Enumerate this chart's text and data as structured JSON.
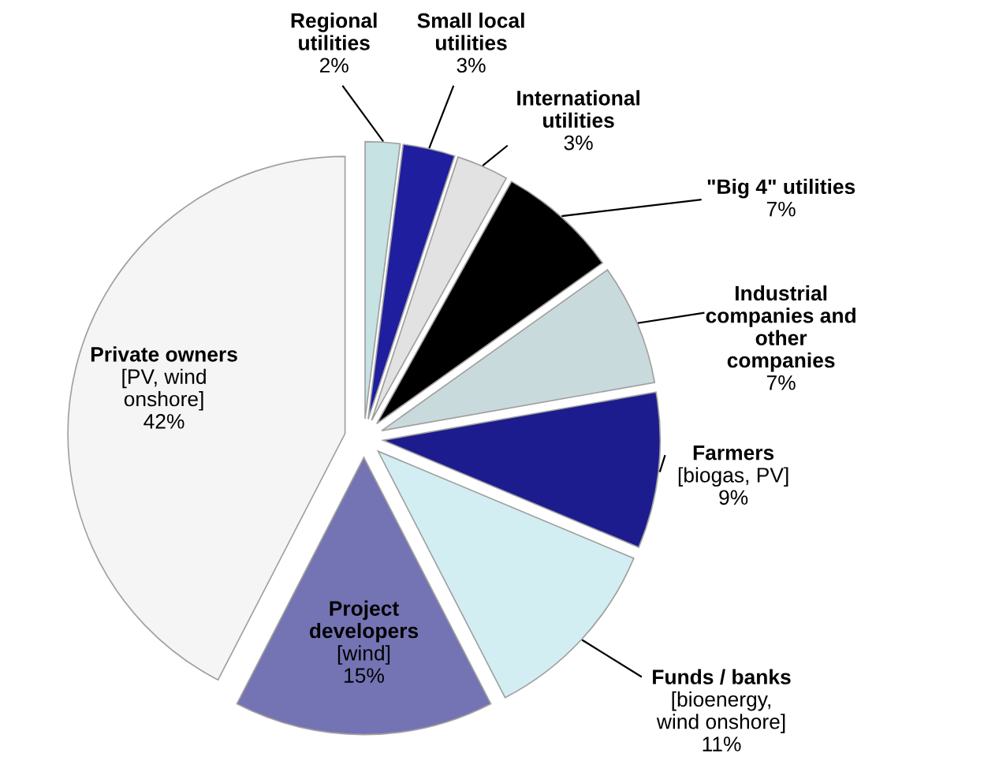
{
  "chart_data": {
    "type": "pie",
    "categories": [
      "Regional\nutilities",
      "Small local\nutilities",
      "International\nutilities",
      "\"Big 4\" utilities",
      "Industrial\ncompanies and\nother\ncompanies",
      "Farmers\n[biogas, PV]",
      "Funds / banks\n[bioenergy,\nwind onshore]",
      "Project\ndevelopers\n[wind]",
      "Private owners\n[PV, wind\nonshore]"
    ],
    "values": [
      2,
      3,
      3,
      7,
      7,
      9,
      11,
      15,
      42
    ],
    "value_labels": [
      "2%",
      "3%",
      "3%",
      "7%",
      "7%",
      "9%",
      "11%",
      "15%",
      "42%"
    ],
    "colors": [
      "#c6e2e2",
      "#1e1e9e",
      "#e2e2e2",
      "#000000",
      "#c9dadd",
      "#1c1c8e",
      "#d2eef2",
      "#7474b4",
      "#f5f5f5"
    ]
  }
}
